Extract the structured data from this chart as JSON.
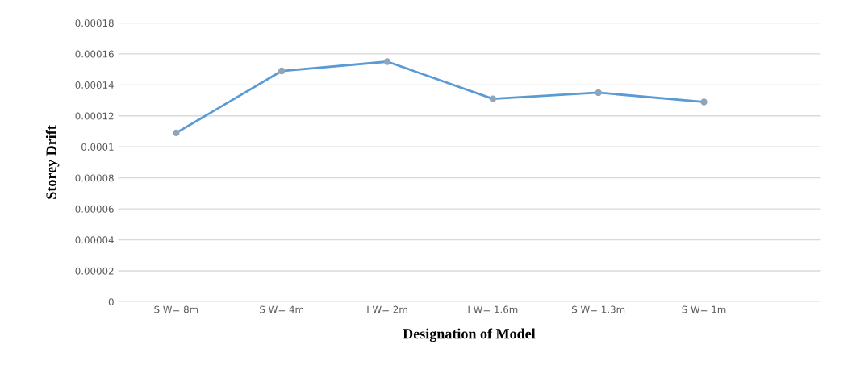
{
  "chart_data": {
    "type": "line",
    "xlabel": "Designation of Model",
    "ylabel": "Storey Drift",
    "categories": [
      "S W= 8m",
      "S W= 4m",
      "I W= 2m",
      "I W= 1.6m",
      "S W= 1.3m",
      "S W= 1m"
    ],
    "series": [
      {
        "color": "#5b9bd5",
        "values": [
          0.000109,
          0.000149,
          0.000155,
          0.000131,
          0.000135,
          0.000129
        ]
      }
    ],
    "ylim": [
      0,
      0.00018
    ],
    "yticks": [
      {
        "value": 0,
        "label": "0"
      },
      {
        "value": 2e-05,
        "label": "0.00002"
      },
      {
        "value": 4e-05,
        "label": "0.00004"
      },
      {
        "value": 6e-05,
        "label": "0.00006"
      },
      {
        "value": 8e-05,
        "label": "0.00008"
      },
      {
        "value": 0.0001,
        "label": "0.0001"
      },
      {
        "value": 0.00012,
        "label": "0.00012"
      },
      {
        "value": 0.00014,
        "label": "0.00014"
      },
      {
        "value": 0.00016,
        "label": "0.00016"
      },
      {
        "value": 0.00018,
        "label": "0.00018"
      }
    ],
    "grid": "y",
    "marker": "circle",
    "line_style": "solid"
  }
}
